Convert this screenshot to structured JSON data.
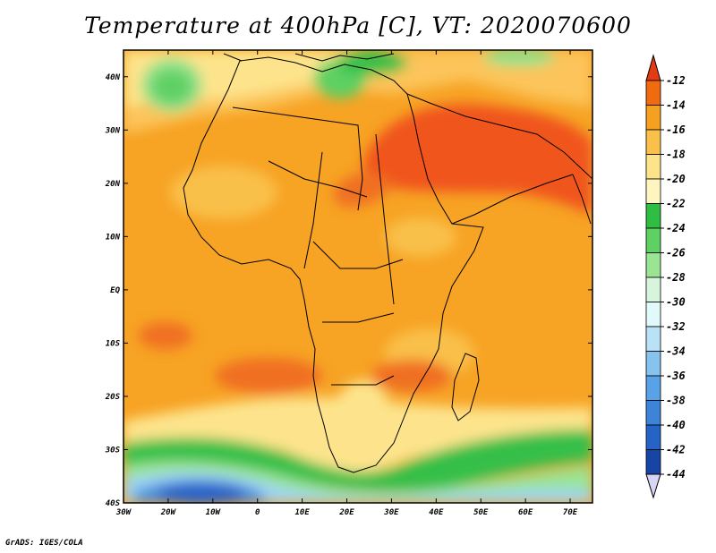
{
  "title": "Temperature at 400hPa [C], VT: 2020070600",
  "credit": "GrADS: IGES/COLA",
  "map": {
    "lon_range": [
      -30,
      75
    ],
    "lat_range": [
      -40,
      45
    ],
    "lon_ticks": [
      {
        "value": -30,
        "label": "30W"
      },
      {
        "value": -20,
        "label": "20W"
      },
      {
        "value": -10,
        "label": "10W"
      },
      {
        "value": 0,
        "label": "0"
      },
      {
        "value": 10,
        "label": "10E"
      },
      {
        "value": 20,
        "label": "20E"
      },
      {
        "value": 30,
        "label": "30E"
      },
      {
        "value": 40,
        "label": "40E"
      },
      {
        "value": 50,
        "label": "50E"
      },
      {
        "value": 60,
        "label": "60E"
      },
      {
        "value": 70,
        "label": "70E"
      }
    ],
    "lat_ticks": [
      {
        "value": 40,
        "label": "40N"
      },
      {
        "value": 30,
        "label": "30N"
      },
      {
        "value": 20,
        "label": "20N"
      },
      {
        "value": 10,
        "label": "10N"
      },
      {
        "value": 0,
        "label": "EQ"
      },
      {
        "value": -10,
        "label": "10S"
      },
      {
        "value": -20,
        "label": "20S"
      },
      {
        "value": -30,
        "label": "30S"
      },
      {
        "value": -40,
        "label": "40S"
      }
    ]
  },
  "colorbar": {
    "levels": [
      "-12",
      "-14",
      "-16",
      "-18",
      "-20",
      "-22",
      "-24",
      "-26",
      "-28",
      "-30",
      "-32",
      "-34",
      "-36",
      "-38",
      "-40",
      "-42",
      "-44"
    ],
    "colors": [
      "#e63a14",
      "#f06a10",
      "#f5a01e",
      "#f9c04a",
      "#fde38a",
      "#fff5c0",
      "#2fbd43",
      "#5fd064",
      "#9ae494",
      "#d7f5dc",
      "#e2f9fb",
      "#b9e2f6",
      "#87c3ef",
      "#5aa2e8",
      "#3d84d8",
      "#2563c6",
      "#1745a5",
      "#0d2374"
    ]
  },
  "field": {
    "description_colors": {
      "hot": "#f0541a",
      "warm": "#f79a22",
      "mild": "#fcc45a",
      "cool": "#fde48c",
      "pale": "#fff5c0",
      "green": "#35bf48",
      "lightgreen": "#8ee18a",
      "lightblue": "#9fd4f3",
      "blue": "#4f93e0",
      "darkblue": "#2a63c7"
    }
  }
}
